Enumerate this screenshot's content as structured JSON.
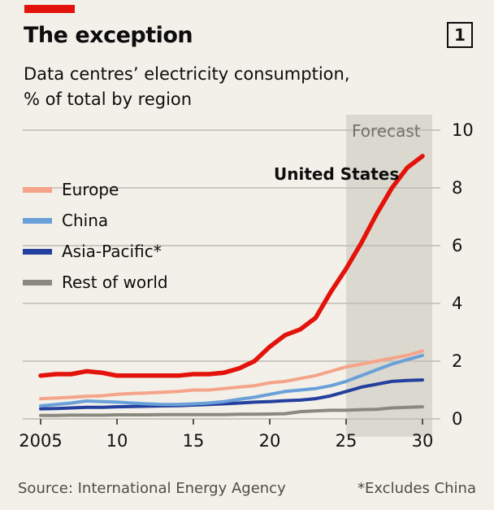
{
  "header": {
    "title": "The exception",
    "figure_number": "1",
    "subtitle_line1": "Data centres’ electricity consumption,",
    "subtitle_line2": "% of total by region"
  },
  "legend": {
    "items": [
      {
        "label": "Europe",
        "color": "#f5a489"
      },
      {
        "label": "China",
        "color": "#6aa0d8"
      },
      {
        "label": "Asia-Pacific*",
        "color": "#24409e"
      },
      {
        "label": "Rest of world",
        "color": "#8a8980"
      }
    ]
  },
  "annotations": {
    "forecast_label": "Forecast",
    "us_series_label": "United States"
  },
  "footer": {
    "source": "Source: International Energy Agency",
    "note": "*Excludes China"
  },
  "colors": {
    "background": "#f2f0e8",
    "accent_red": "#e3120b",
    "forecast_band": "#dbd9cf",
    "gridline": "#bdbbb2",
    "tick": "#55544e",
    "axis_text": "#111111",
    "muted_text": "#72716a",
    "footer_text": "#4d4c45"
  },
  "chart_data": {
    "type": "line",
    "title": "The exception",
    "subtitle": "Data centres’ electricity consumption, % of total by region",
    "x": [
      2005,
      2006,
      2007,
      2008,
      2009,
      2010,
      2011,
      2012,
      2013,
      2014,
      2015,
      2016,
      2017,
      2018,
      2019,
      2020,
      2021,
      2022,
      2023,
      2024,
      2025,
      2026,
      2027,
      2028,
      2029,
      2030
    ],
    "xlim": [
      2005,
      2030
    ],
    "ylim": [
      0,
      10
    ],
    "y_ticks": [
      0,
      2,
      4,
      6,
      8,
      10
    ],
    "x_ticks": [
      {
        "year": 2005,
        "label": "2005"
      },
      {
        "year": 2010,
        "label": "10"
      },
      {
        "year": 2015,
        "label": "15"
      },
      {
        "year": 2020,
        "label": "20"
      },
      {
        "year": 2025,
        "label": "25"
      },
      {
        "year": 2030,
        "label": "30"
      }
    ],
    "grid": "horizontal",
    "legend_position": "inside-top-left",
    "forecast": {
      "start_year": 2025,
      "end_year": 2030,
      "label": "Forecast"
    },
    "series": [
      {
        "name": "United States",
        "color": "#e3120b",
        "stroke_width": 5.5,
        "values": [
          1.5,
          1.55,
          1.55,
          1.65,
          1.6,
          1.5,
          1.5,
          1.5,
          1.5,
          1.5,
          1.55,
          1.55,
          1.6,
          1.75,
          2.0,
          2.5,
          2.9,
          3.1,
          3.5,
          4.4,
          5.2,
          6.1,
          7.1,
          8.0,
          8.7,
          9.1
        ]
      },
      {
        "name": "Europe",
        "color": "#f5a489",
        "stroke_width": 4,
        "values": [
          0.7,
          0.72,
          0.75,
          0.78,
          0.8,
          0.85,
          0.88,
          0.9,
          0.92,
          0.95,
          1.0,
          1.0,
          1.05,
          1.1,
          1.15,
          1.25,
          1.3,
          1.4,
          1.5,
          1.65,
          1.8,
          1.9,
          2.0,
          2.1,
          2.2,
          2.35
        ]
      },
      {
        "name": "China",
        "color": "#6aa0d8",
        "stroke_width": 4,
        "values": [
          0.45,
          0.5,
          0.55,
          0.62,
          0.6,
          0.58,
          0.55,
          0.52,
          0.5,
          0.5,
          0.52,
          0.55,
          0.6,
          0.68,
          0.75,
          0.85,
          0.95,
          1.0,
          1.05,
          1.15,
          1.3,
          1.5,
          1.7,
          1.9,
          2.05,
          2.2
        ]
      },
      {
        "name": "Asia-Pacific*",
        "color": "#24409e",
        "stroke_width": 4,
        "values": [
          0.35,
          0.36,
          0.38,
          0.4,
          0.4,
          0.42,
          0.43,
          0.44,
          0.45,
          0.46,
          0.48,
          0.5,
          0.52,
          0.55,
          0.58,
          0.6,
          0.63,
          0.65,
          0.7,
          0.8,
          0.95,
          1.1,
          1.2,
          1.3,
          1.33,
          1.35
        ]
      },
      {
        "name": "Rest of world",
        "color": "#8a8980",
        "stroke_width": 4,
        "values": [
          0.12,
          0.12,
          0.13,
          0.13,
          0.13,
          0.14,
          0.14,
          0.14,
          0.15,
          0.15,
          0.15,
          0.15,
          0.15,
          0.16,
          0.16,
          0.17,
          0.18,
          0.25,
          0.28,
          0.3,
          0.3,
          0.32,
          0.33,
          0.38,
          0.4,
          0.42
        ]
      }
    ],
    "source": "Source: International Energy Agency",
    "footnote": "*Excludes China"
  }
}
